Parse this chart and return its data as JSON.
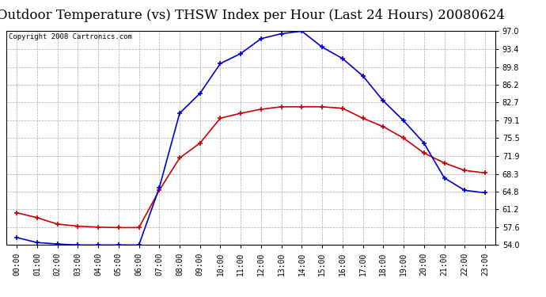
{
  "title": "Outdoor Temperature (vs) THSW Index per Hour (Last 24 Hours) 20080624",
  "copyright": "Copyright 2008 Cartronics.com",
  "hours": [
    "00:00",
    "01:00",
    "02:00",
    "03:00",
    "04:00",
    "05:00",
    "06:00",
    "07:00",
    "08:00",
    "09:00",
    "10:00",
    "11:00",
    "12:00",
    "13:00",
    "14:00",
    "15:00",
    "16:00",
    "17:00",
    "18:00",
    "19:00",
    "20:00",
    "21:00",
    "22:00",
    "23:00"
  ],
  "temp": [
    60.5,
    59.5,
    58.2,
    57.8,
    57.6,
    57.5,
    57.5,
    65.0,
    71.5,
    74.5,
    79.5,
    80.5,
    81.3,
    81.8,
    81.8,
    81.8,
    81.5,
    79.5,
    77.8,
    75.5,
    72.5,
    70.5,
    69.0,
    68.5
  ],
  "thsw": [
    55.5,
    54.5,
    54.2,
    54.0,
    54.0,
    54.0,
    54.0,
    65.5,
    80.5,
    84.5,
    90.5,
    92.5,
    95.5,
    96.5,
    97.0,
    93.8,
    91.5,
    88.0,
    83.0,
    79.0,
    74.5,
    67.5,
    65.0,
    64.5
  ],
  "temp_color": "#cc0000",
  "thsw_color": "#0000cc",
  "bg_color": "#ffffff",
  "grid_color": "#aaaaaa",
  "ymin": 54.0,
  "ymax": 97.0,
  "yticks": [
    54.0,
    57.6,
    61.2,
    64.8,
    68.3,
    71.9,
    75.5,
    79.1,
    82.7,
    86.2,
    89.8,
    93.4,
    97.0
  ],
  "title_fontsize": 12,
  "copyright_fontsize": 6.5,
  "tick_fontsize": 7.0
}
